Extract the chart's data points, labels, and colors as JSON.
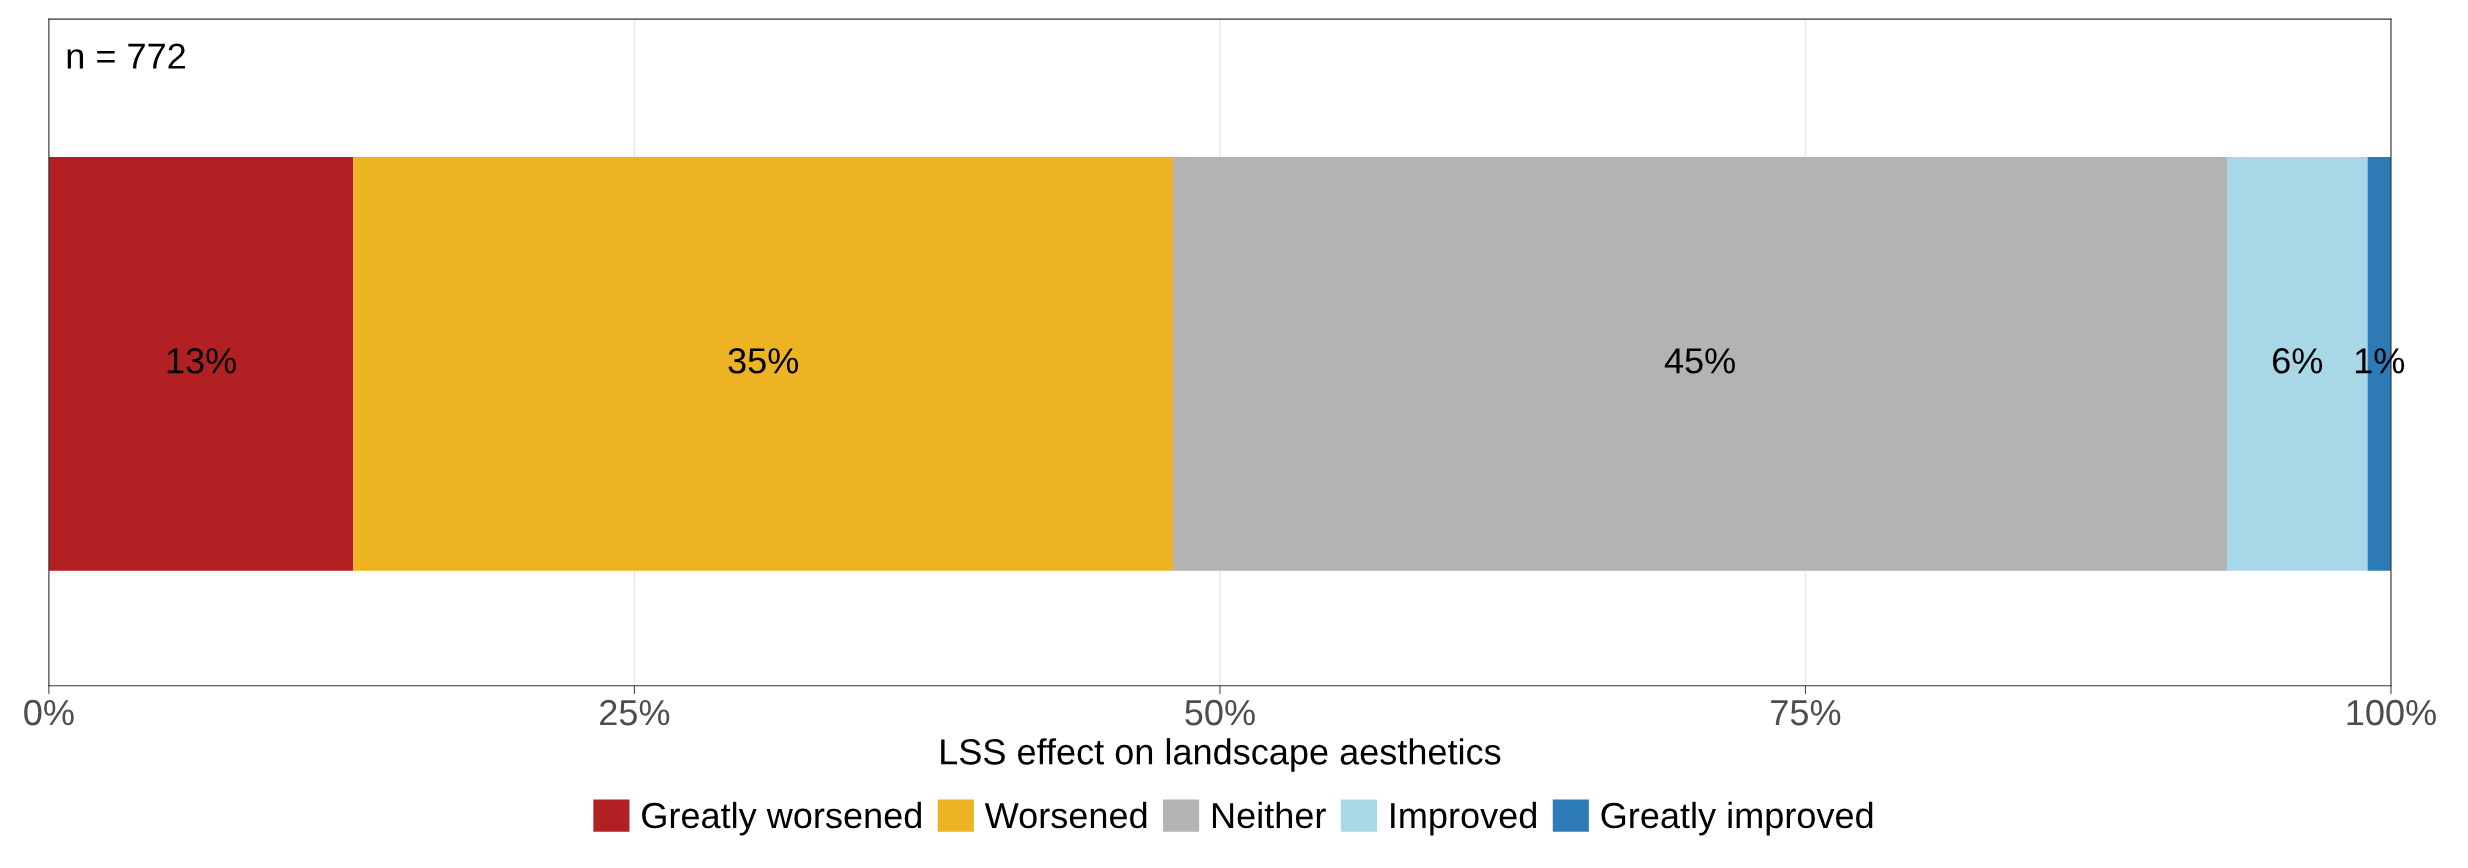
{
  "chart_data": {
    "type": "bar",
    "orientation": "horizontal",
    "stacked": true,
    "categories": [
      null
    ],
    "series": [
      {
        "name": "Greatly worsened",
        "color": "#b22024",
        "values": [
          13
        ],
        "value_labels": [
          "13%"
        ]
      },
      {
        "name": "Worsened",
        "color": "#edb323",
        "values": [
          35
        ],
        "value_labels": [
          "35%"
        ]
      },
      {
        "name": "Neither",
        "color": "#b3b3b3",
        "values": [
          45
        ],
        "value_labels": [
          "45%"
        ]
      },
      {
        "name": "Improved",
        "color": "#a8d8e8",
        "values": [
          6
        ],
        "value_labels": [
          "6%"
        ]
      },
      {
        "name": "Greatly improved",
        "color": "#2c7bb6",
        "values": [
          1
        ],
        "value_labels": [
          "1%"
        ]
      }
    ],
    "xlabel": "LSS effect on landscape aesthetics",
    "xlim": [
      0,
      100
    ],
    "xticks": [
      {
        "value": 0,
        "label": "0%"
      },
      {
        "value": 25,
        "label": "25%"
      },
      {
        "value": 50,
        "label": "50%"
      },
      {
        "value": 75,
        "label": "75%"
      },
      {
        "value": 100,
        "label": "100%"
      }
    ],
    "annotations": [
      "n = 772"
    ],
    "grid": "x",
    "legend": "bottom",
    "tick_labels": "x"
  }
}
